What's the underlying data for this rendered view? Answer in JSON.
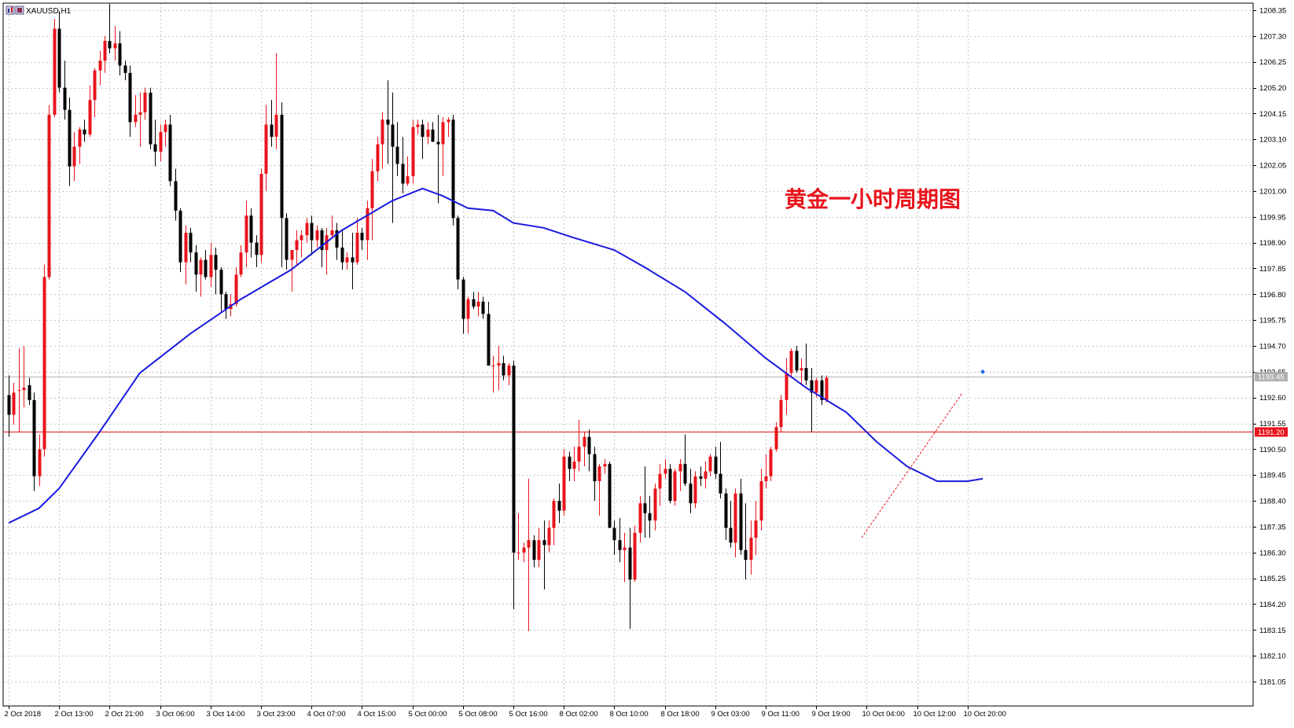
{
  "window": {
    "symbol_label": "XAUUSD,H1"
  },
  "annotation": {
    "text": "黄金一小时周期图",
    "color": "#e8141c"
  },
  "colors": {
    "bull": "#e8141c",
    "bear": "#000000",
    "ma": "#1a1adf",
    "hline": "#e8141c",
    "bid": "#b0b0b0",
    "grid": "#c8c8c8"
  },
  "chart_data": {
    "type": "candlestick",
    "symbol": "XAUUSD",
    "timeframe": "H1",
    "ylim": [
      1180.2,
      1208.8
    ],
    "y_ticks": [
      "1208.35",
      "1207.30",
      "1206.25",
      "1205.20",
      "1204.15",
      "1203.10",
      "1202.05",
      "1201.00",
      "1199.95",
      "1198.90",
      "1197.85",
      "1196.80",
      "1195.75",
      "1194.70",
      "1193.65",
      "1192.60",
      "1191.55",
      "1190.50",
      "1189.45",
      "1188.40",
      "1187.35",
      "1186.30",
      "1185.25",
      "1184.20",
      "1183.15",
      "1182.10",
      "1181.05"
    ],
    "x_ticks": [
      {
        "bar": 0,
        "label": "2 Oct 2018"
      },
      {
        "bar": 10,
        "label": "2 Oct 13:00"
      },
      {
        "bar": 20,
        "label": "2 Oct 21:00"
      },
      {
        "bar": 30,
        "label": "3 Oct 06:00"
      },
      {
        "bar": 40,
        "label": "3 Oct 14:00"
      },
      {
        "bar": 50,
        "label": "3 Oct 23:00"
      },
      {
        "bar": 60,
        "label": "4 Oct 07:00"
      },
      {
        "bar": 70,
        "label": "4 Oct 15:00"
      },
      {
        "bar": 80,
        "label": "5 Oct 00:00"
      },
      {
        "bar": 90,
        "label": "5 Oct 08:00"
      },
      {
        "bar": 100,
        "label": "5 Oct 16:00"
      },
      {
        "bar": 110,
        "label": "8 Oct 02:00"
      },
      {
        "bar": 120,
        "label": "8 Oct 10:00"
      },
      {
        "bar": 130,
        "label": "8 Oct 18:00"
      },
      {
        "bar": 140,
        "label": "9 Oct 03:00"
      },
      {
        "bar": 150,
        "label": "9 Oct 11:00"
      },
      {
        "bar": 160,
        "label": "9 Oct 19:00"
      },
      {
        "bar": 170,
        "label": "10 Oct 04:00"
      },
      {
        "bar": 180,
        "label": "10 Oct 12:00"
      },
      {
        "bar": 190,
        "label": "10 Oct 20:00"
      }
    ],
    "ohlc": [
      [
        1192.7,
        1193.5,
        1191.0,
        1191.9
      ],
      [
        1191.9,
        1193.2,
        1191.5,
        1192.8
      ],
      [
        1192.9,
        1194.6,
        1191.2,
        1192.9
      ],
      [
        1192.9,
        1194.7,
        1192.2,
        1193.0
      ],
      [
        1193.1,
        1193.4,
        1192.3,
        1192.5
      ],
      [
        1192.5,
        1192.8,
        1188.8,
        1189.4
      ],
      [
        1189.4,
        1191.1,
        1189.0,
        1190.5
      ],
      [
        1190.5,
        1198.0,
        1190.2,
        1197.5
      ],
      [
        1197.5,
        1204.5,
        1197.4,
        1204.1
      ],
      [
        1204.1,
        1208.0,
        1204.0,
        1207.6
      ],
      [
        1207.6,
        1208.3,
        1205.0,
        1205.2
      ],
      [
        1205.2,
        1206.3,
        1203.9,
        1204.3
      ],
      [
        1204.3,
        1204.8,
        1201.2,
        1202.0
      ],
      [
        1202.0,
        1203.4,
        1201.4,
        1202.8
      ],
      [
        1202.8,
        1203.6,
        1202.1,
        1203.5
      ],
      [
        1203.5,
        1203.9,
        1203.0,
        1203.3
      ],
      [
        1203.3,
        1205.3,
        1203.2,
        1204.7
      ],
      [
        1204.7,
        1206.0,
        1204.0,
        1205.9
      ],
      [
        1205.9,
        1206.7,
        1205.3,
        1206.3
      ],
      [
        1206.3,
        1207.3,
        1205.8,
        1207.1
      ],
      [
        1207.1,
        1208.6,
        1206.6,
        1206.8
      ],
      [
        1206.8,
        1207.7,
        1206.3,
        1207.0
      ],
      [
        1207.0,
        1207.5,
        1205.7,
        1206.1
      ],
      [
        1206.1,
        1206.3,
        1205.5,
        1205.8
      ],
      [
        1205.8,
        1206.1,
        1203.2,
        1203.8
      ],
      [
        1203.8,
        1204.9,
        1203.6,
        1204.1
      ],
      [
        1204.1,
        1205.0,
        1202.8,
        1204.2
      ],
      [
        1204.2,
        1205.2,
        1203.9,
        1205.0
      ],
      [
        1205.0,
        1205.2,
        1202.7,
        1202.9
      ],
      [
        1202.9,
        1203.9,
        1202.0,
        1202.6
      ],
      [
        1202.6,
        1203.7,
        1202.2,
        1203.4
      ],
      [
        1203.4,
        1203.9,
        1202.8,
        1203.7
      ],
      [
        1203.7,
        1204.1,
        1201.2,
        1201.4
      ],
      [
        1201.4,
        1201.9,
        1199.8,
        1200.2
      ],
      [
        1200.2,
        1200.3,
        1197.7,
        1198.1
      ],
      [
        1198.1,
        1199.6,
        1197.2,
        1199.3
      ],
      [
        1199.3,
        1199.5,
        1198.1,
        1198.5
      ],
      [
        1198.5,
        1198.8,
        1196.9,
        1197.6
      ],
      [
        1197.6,
        1198.3,
        1196.7,
        1198.2
      ],
      [
        1198.2,
        1198.6,
        1197.4,
        1197.5
      ],
      [
        1197.5,
        1198.9,
        1197.1,
        1198.4
      ],
      [
        1198.4,
        1198.7,
        1196.8,
        1197.8
      ],
      [
        1197.8,
        1197.9,
        1196.1,
        1196.8
      ],
      [
        1196.8,
        1196.9,
        1195.8,
        1196.2
      ],
      [
        1196.2,
        1196.8,
        1195.9,
        1196.4
      ],
      [
        1196.4,
        1197.9,
        1196.3,
        1197.6
      ],
      [
        1197.6,
        1198.8,
        1197.5,
        1198.5
      ],
      [
        1198.5,
        1200.6,
        1197.9,
        1200.0
      ],
      [
        1200.0,
        1200.3,
        1198.3,
        1198.9
      ],
      [
        1198.9,
        1199.2,
        1197.9,
        1198.4
      ],
      [
        1198.4,
        1201.9,
        1198.1,
        1201.7
      ],
      [
        1201.7,
        1204.5,
        1201.0,
        1203.7
      ],
      [
        1203.7,
        1204.7,
        1202.8,
        1203.2
      ],
      [
        1203.2,
        1206.6,
        1202.7,
        1204.1
      ],
      [
        1204.1,
        1204.6,
        1197.9,
        1199.9
      ],
      [
        1199.9,
        1200.1,
        1197.8,
        1198.2
      ],
      [
        1198.2,
        1198.6,
        1196.9,
        1198.6
      ],
      [
        1198.6,
        1199.4,
        1198.0,
        1199.0
      ],
      [
        1199.0,
        1199.4,
        1198.3,
        1199.2
      ],
      [
        1199.2,
        1199.9,
        1198.9,
        1199.7
      ],
      [
        1199.7,
        1200.0,
        1198.4,
        1199.0
      ],
      [
        1199.0,
        1199.6,
        1198.7,
        1199.4
      ],
      [
        1199.4,
        1199.5,
        1197.9,
        1198.6
      ],
      [
        1198.6,
        1199.5,
        1197.6,
        1199.2
      ],
      [
        1199.2,
        1200.0,
        1199.1,
        1199.4
      ],
      [
        1199.4,
        1199.7,
        1198.2,
        1198.7
      ],
      [
        1198.7,
        1199.4,
        1197.8,
        1198.1
      ],
      [
        1198.1,
        1198.5,
        1197.8,
        1198.3
      ],
      [
        1198.3,
        1199.3,
        1197.0,
        1198.1
      ],
      [
        1198.1,
        1199.9,
        1198.0,
        1199.3
      ],
      [
        1199.3,
        1199.5,
        1198.6,
        1199.0
      ],
      [
        1199.0,
        1200.6,
        1198.2,
        1200.3
      ],
      [
        1200.3,
        1202.3,
        1199.0,
        1201.8
      ],
      [
        1201.8,
        1203.2,
        1201.4,
        1202.9
      ],
      [
        1202.9,
        1204.2,
        1201.9,
        1203.9
      ],
      [
        1203.9,
        1205.5,
        1202.1,
        1203.7
      ],
      [
        1203.7,
        1205.0,
        1199.7,
        1202.8
      ],
      [
        1202.8,
        1203.8,
        1201.6,
        1202.1
      ],
      [
        1202.1,
        1203.2,
        1200.9,
        1201.3
      ],
      [
        1201.3,
        1202.4,
        1201.2,
        1201.6
      ],
      [
        1201.6,
        1203.9,
        1201.3,
        1203.6
      ],
      [
        1203.6,
        1203.9,
        1203.3,
        1203.7
      ],
      [
        1203.7,
        1203.9,
        1202.3,
        1203.2
      ],
      [
        1203.2,
        1203.8,
        1202.9,
        1203.5
      ],
      [
        1203.5,
        1203.8,
        1203.0,
        1203.0
      ]
    ],
    "ohlc_tail": [
      [
        1203.0,
        1204.1,
        1200.5,
        1202.9
      ],
      [
        1202.9,
        1204.0,
        1201.6,
        1203.8
      ],
      [
        1203.8,
        1204.0,
        1203.2,
        1203.9
      ],
      [
        1203.9,
        1204.1,
        1199.6,
        1199.9
      ],
      [
        1199.9,
        1200.0,
        1197.0,
        1197.4
      ],
      [
        1197.4,
        1197.5,
        1195.2,
        1195.8
      ],
      [
        1195.8,
        1196.7,
        1195.2,
        1196.6
      ],
      [
        1196.6,
        1196.9,
        1196.2,
        1196.3
      ],
      [
        1196.3,
        1196.9,
        1195.9,
        1196.5
      ],
      [
        1196.5,
        1196.7,
        1195.8,
        1196.0
      ],
      [
        1196.0,
        1196.5,
        1193.9,
        1193.9
      ],
      [
        1193.9,
        1194.3,
        1192.8,
        1193.9
      ],
      [
        1193.9,
        1194.7,
        1192.9,
        1194.0
      ],
      [
        1194.0,
        1194.3,
        1193.3,
        1193.5
      ],
      [
        1193.5,
        1194.0,
        1193.1,
        1193.9
      ],
      [
        1193.9,
        1194.1,
        1184.0,
        1186.3
      ],
      [
        1186.3,
        1187.9,
        1186.0,
        1186.3
      ],
      [
        1186.3,
        1186.7,
        1185.9,
        1186.5
      ],
      [
        1186.5,
        1189.3,
        1183.1,
        1186.8
      ],
      [
        1186.8,
        1187.0,
        1185.7,
        1186.0
      ],
      [
        1186.0,
        1187.3,
        1185.7,
        1186.8
      ],
      [
        1186.8,
        1187.6,
        1184.8,
        1186.6
      ],
      [
        1186.6,
        1187.6,
        1186.3,
        1187.3
      ],
      [
        1187.3,
        1188.5,
        1186.6,
        1188.4
      ],
      [
        1188.4,
        1189.1,
        1187.5,
        1188.0
      ],
      [
        1188.0,
        1190.5,
        1187.8,
        1190.2
      ],
      [
        1190.2,
        1190.4,
        1189.2,
        1189.7
      ],
      [
        1189.7,
        1190.6,
        1189.2,
        1190.0
      ],
      [
        1190.0,
        1191.7,
        1189.6,
        1190.6
      ],
      [
        1190.6,
        1191.2,
        1189.8,
        1191.0
      ],
      [
        1191.0,
        1191.3,
        1189.6,
        1190.3
      ],
      [
        1190.3,
        1190.6,
        1188.4,
        1189.2
      ],
      [
        1189.2,
        1189.9,
        1187.8,
        1189.8
      ],
      [
        1189.8,
        1190.1,
        1189.5,
        1189.9
      ],
      [
        1189.9,
        1190.0,
        1187.3,
        1187.3
      ],
      [
        1187.3,
        1187.6,
        1186.2,
        1186.8
      ],
      [
        1186.8,
        1187.7,
        1185.9,
        1186.4
      ],
      [
        1186.4,
        1187.1,
        1185.1,
        1186.5
      ],
      [
        1186.5,
        1187.3,
        1183.2,
        1185.2
      ],
      [
        1185.2,
        1187.4,
        1185.1,
        1187.1
      ],
      [
        1187.1,
        1188.6,
        1186.7,
        1188.3
      ],
      [
        1188.3,
        1189.8,
        1186.9,
        1187.9
      ],
      [
        1187.9,
        1188.6,
        1186.9,
        1187.6
      ],
      [
        1187.6,
        1189.1,
        1187.2,
        1188.9
      ],
      [
        1188.9,
        1189.9,
        1188.2,
        1189.5
      ],
      [
        1189.5,
        1190.1,
        1189.3,
        1189.7
      ],
      [
        1189.7,
        1189.9,
        1188.3,
        1188.4
      ],
      [
        1188.4,
        1189.7,
        1188.2,
        1189.6
      ],
      [
        1189.6,
        1190.1,
        1188.8,
        1189.9
      ],
      [
        1189.9,
        1191.1,
        1189.0,
        1189.1
      ],
      [
        1189.1,
        1189.7,
        1187.9,
        1188.3
      ],
      [
        1188.3,
        1189.6,
        1188.1,
        1189.4
      ],
      [
        1189.4,
        1189.8,
        1189.0,
        1189.3
      ],
      [
        1189.3,
        1190.0,
        1188.9,
        1189.6
      ],
      [
        1189.6,
        1190.3,
        1189.4,
        1190.2
      ],
      [
        1190.2,
        1190.6,
        1189.3,
        1189.5
      ],
      [
        1189.5,
        1190.8,
        1188.5,
        1188.7
      ],
      [
        1188.7,
        1188.9,
        1186.8,
        1187.3
      ],
      [
        1187.3,
        1188.4,
        1186.5,
        1186.7
      ],
      [
        1186.7,
        1188.9,
        1186.1,
        1188.7
      ],
      [
        1188.7,
        1189.3,
        1186.2,
        1186.4
      ],
      [
        1186.4,
        1188.3,
        1185.2,
        1186.0
      ],
      [
        1186.0,
        1187.6,
        1185.4,
        1186.9
      ],
      [
        1186.9,
        1188.4,
        1186.2,
        1187.6
      ],
      [
        1187.6,
        1189.7,
        1187.2,
        1189.2
      ],
      [
        1189.2,
        1190.3,
        1188.9,
        1189.4
      ],
      [
        1189.4,
        1190.6,
        1189.2,
        1190.5
      ],
      [
        1190.5,
        1191.6,
        1190.4,
        1191.4
      ],
      [
        1191.4,
        1192.7,
        1191.2,
        1192.5
      ],
      [
        1192.5,
        1194.2,
        1191.9,
        1193.6
      ],
      [
        1193.6,
        1194.6,
        1193.4,
        1194.5
      ],
      [
        1194.5,
        1194.7,
        1193.6,
        1193.7
      ],
      [
        1193.7,
        1194.2,
        1193.1,
        1193.8
      ],
      [
        1193.8,
        1194.8,
        1193.1,
        1193.3
      ],
      [
        1193.3,
        1193.8,
        1191.2,
        1192.8
      ],
      [
        1192.8,
        1193.4,
        1192.6,
        1193.3
      ],
      [
        1193.3,
        1193.5,
        1192.3,
        1192.5
      ],
      [
        1192.5,
        1193.5,
        1192.4,
        1193.4
      ]
    ],
    "ma_series": {
      "name": "",
      "points": [
        [
          0,
          1187.5
        ],
        [
          6,
          1188.1
        ],
        [
          10,
          1188.9
        ],
        [
          18,
          1191.2
        ],
        [
          26,
          1193.6
        ],
        [
          36,
          1195.2
        ],
        [
          46,
          1196.6
        ],
        [
          56,
          1197.8
        ],
        [
          66,
          1199.4
        ],
        [
          76,
          1200.6
        ],
        [
          82,
          1201.1
        ],
        [
          86,
          1200.8
        ],
        [
          91,
          1200.3
        ],
        [
          96,
          1200.2
        ],
        [
          100,
          1199.7
        ],
        [
          106,
          1199.5
        ],
        [
          112,
          1199.1
        ],
        [
          120,
          1198.6
        ],
        [
          126,
          1197.9
        ],
        [
          134,
          1196.9
        ],
        [
          142,
          1195.6
        ],
        [
          150,
          1194.2
        ],
        [
          158,
          1193.0
        ],
        [
          166,
          1192.0
        ],
        [
          172,
          1190.8
        ],
        [
          178,
          1189.8
        ],
        [
          184,
          1189.2
        ],
        [
          190,
          1189.2
        ],
        [
          193,
          1189.3
        ]
      ]
    },
    "hline": {
      "price": 1191.2,
      "label": "1191.20"
    },
    "bid": {
      "price": 1193.45,
      "label": "1193.45"
    },
    "trendline": [
      [
        169,
        1186.9
      ],
      [
        189,
        1192.8
      ]
    ]
  }
}
